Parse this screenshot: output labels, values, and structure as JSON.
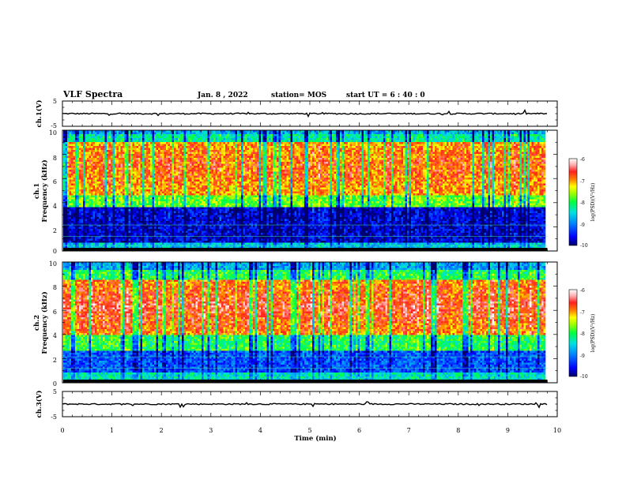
{
  "header": {
    "title": "VLF Spectra",
    "date": "Jan. 8 , 2022",
    "station": "station= MOS",
    "start": "start UT = 6 : 40 : 0"
  },
  "chart_data": [
    {
      "type": "line",
      "panel": "ch1-waveform",
      "ylabel": "ch.1(V)",
      "yticks": [
        "5",
        "-5"
      ],
      "ylim": [
        -5,
        5
      ],
      "baseline": 0,
      "xlim": [
        0,
        10
      ]
    },
    {
      "type": "heatmap",
      "panel": "ch1-spectrogram",
      "ylabel_ch": "ch.1",
      "ylabel": "Frequency (kHz)",
      "ylim": [
        0,
        10
      ],
      "yticks": [
        "0",
        "2",
        "4",
        "6",
        "8",
        "10"
      ],
      "xlim": [
        0,
        10
      ],
      "data_end_min": 9.8,
      "intense_band_khz": [
        4.5,
        9.0
      ],
      "colorbar": {
        "label": "log(PSD)(V²/Hz)",
        "ticks": [
          "-6",
          "-7",
          "-8",
          "-9",
          "-10"
        ],
        "range": [
          -10,
          -6
        ]
      }
    },
    {
      "type": "heatmap",
      "panel": "ch2-spectrogram",
      "ylabel_ch": "ch.2",
      "ylabel": "Frequency (kHz)",
      "ylim": [
        0,
        10
      ],
      "yticks": [
        "0",
        "2",
        "4",
        "6",
        "8",
        "10"
      ],
      "xlim": [
        0,
        10
      ],
      "data_end_min": 9.8,
      "intense_band_khz": [
        4.0,
        8.5
      ],
      "colorbar": {
        "label": "log(PSD)(V²/Hz)",
        "ticks": [
          "-6",
          "-7",
          "-8",
          "-9",
          "-10"
        ],
        "range": [
          -10,
          -6
        ]
      }
    },
    {
      "type": "line",
      "panel": "ch3-waveform",
      "ylabel": "ch.3(V)",
      "yticks": [
        "5",
        "-5"
      ],
      "ylim": [
        -5,
        5
      ],
      "baseline": 0,
      "xlim": [
        0,
        10
      ]
    }
  ],
  "xaxis": {
    "label": "Time (min)",
    "ticks": [
      "0",
      "1",
      "2",
      "3",
      "4",
      "5",
      "6",
      "7",
      "8",
      "9",
      "10"
    ]
  },
  "colormap": [
    "#000066",
    "#0000ff",
    "#0080ff",
    "#00e0e0",
    "#00ff40",
    "#a0ff00",
    "#ffff00",
    "#ff8000",
    "#ff2020",
    "#ffd0d0",
    "#ffffff"
  ]
}
